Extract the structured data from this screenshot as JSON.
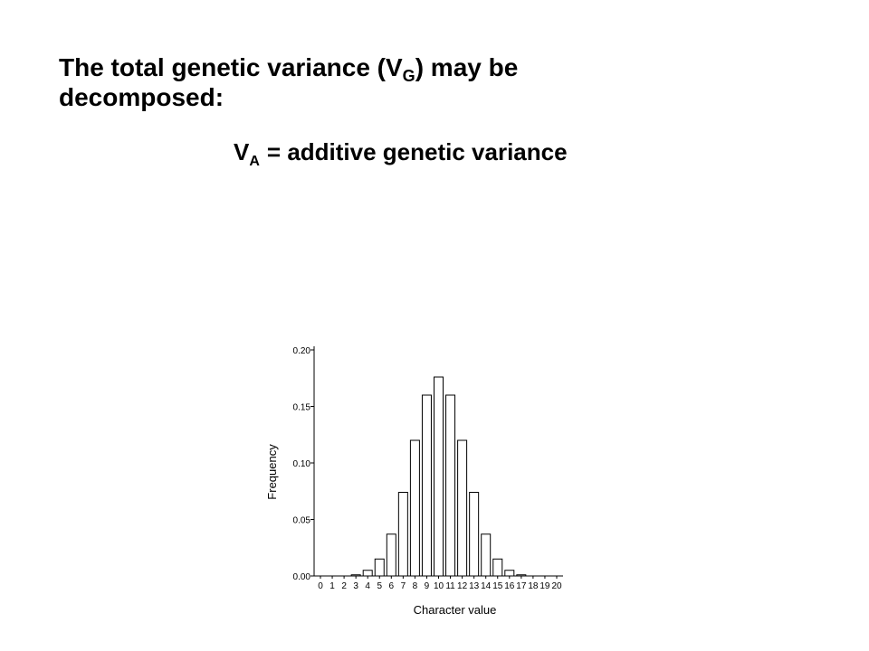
{
  "slide": {
    "title": {
      "before": "The total genetic variance (V",
      "subscript": "G",
      "after": ") may be",
      "line2": "decomposed:"
    },
    "point": {
      "symbol": "V",
      "subscript": "A",
      "text": "= additive genetic variance"
    }
  },
  "chart_data": {
    "type": "bar",
    "x_label": "Character value",
    "y_label": "Frequency",
    "categories": [
      "0",
      "1",
      "2",
      "3",
      "4",
      "5",
      "6",
      "7",
      "8",
      "9",
      "10",
      "11",
      "12",
      "13",
      "14",
      "15",
      "16",
      "17",
      "18",
      "19",
      "20"
    ],
    "values": [
      0,
      0,
      0,
      0.001,
      0.005,
      0.015,
      0.037,
      0.074,
      0.12,
      0.16,
      0.176,
      0.16,
      0.12,
      0.074,
      0.037,
      0.015,
      0.005,
      0.001,
      0,
      0,
      0
    ],
    "color": "#ffffff",
    "ylim": [
      0,
      0.2
    ],
    "yticks": [
      {
        "value": 0,
        "label": "0.00"
      },
      {
        "value": 0.05,
        "label": "0.05"
      },
      {
        "value": 0.1,
        "label": "0.10"
      },
      {
        "value": 0.15,
        "label": "0.15"
      },
      {
        "value": 0.2,
        "label": "0.20"
      }
    ]
  }
}
